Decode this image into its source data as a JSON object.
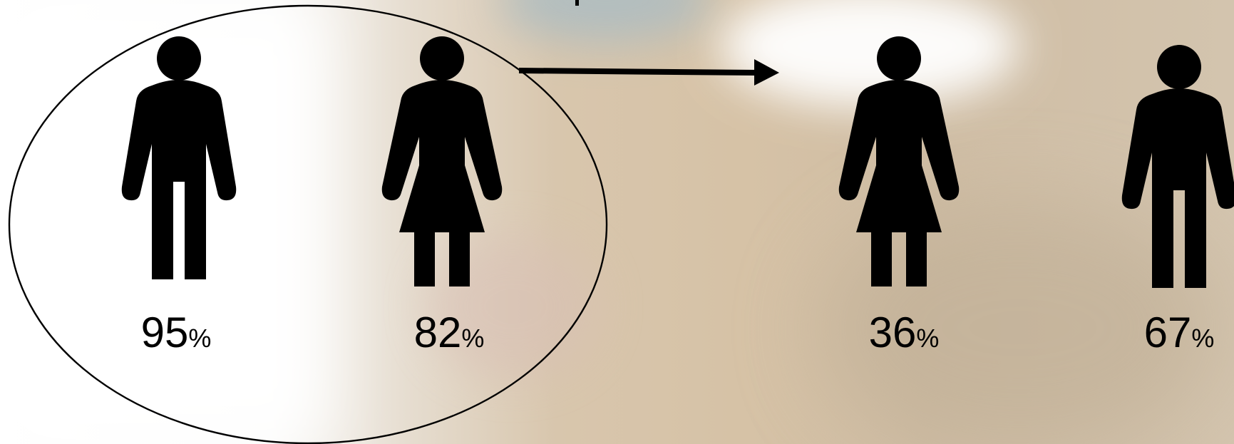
{
  "figures": [
    {
      "icon": "man-icon",
      "value": "95",
      "unit": "%"
    },
    {
      "icon": "woman-icon",
      "value": "82",
      "unit": "%"
    },
    {
      "icon": "woman-icon",
      "value": "36",
      "unit": "%"
    },
    {
      "icon": "man-icon",
      "value": "67",
      "unit": "%"
    }
  ],
  "colors": {
    "ink": "#000000",
    "background": "#d6c2a6"
  }
}
